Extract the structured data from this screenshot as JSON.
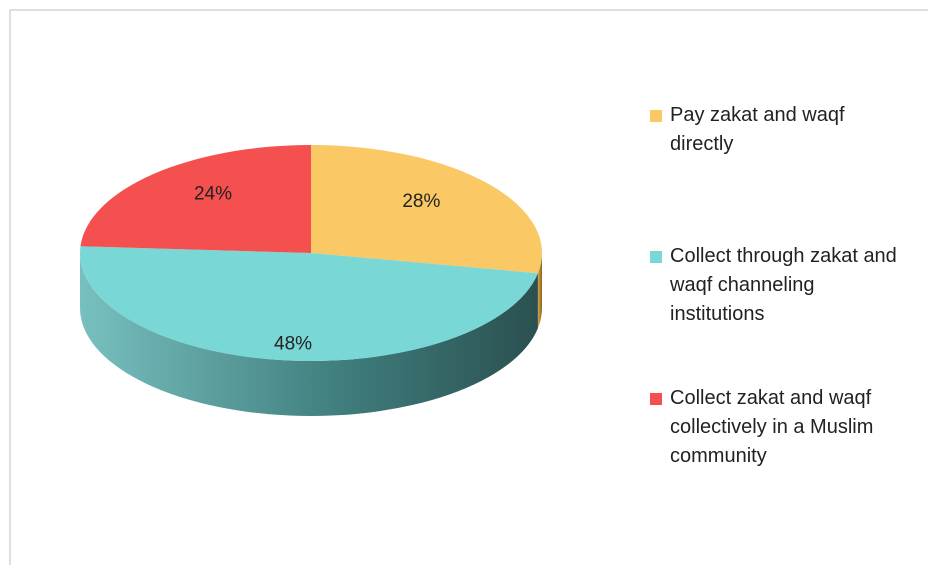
{
  "chart_data": {
    "type": "pie",
    "categories": [
      "Pay zakat and waqf directly",
      "Collect through zakat and waqf channeling institutions",
      "Collect zakat and waqf collectively in a Muslim community"
    ],
    "values": [
      28,
      48,
      24
    ],
    "value_labels": [
      "28%",
      "48%",
      "24%"
    ],
    "colors": [
      "#fac864",
      "#79d7d6",
      "#f55050"
    ],
    "legend": "right"
  }
}
